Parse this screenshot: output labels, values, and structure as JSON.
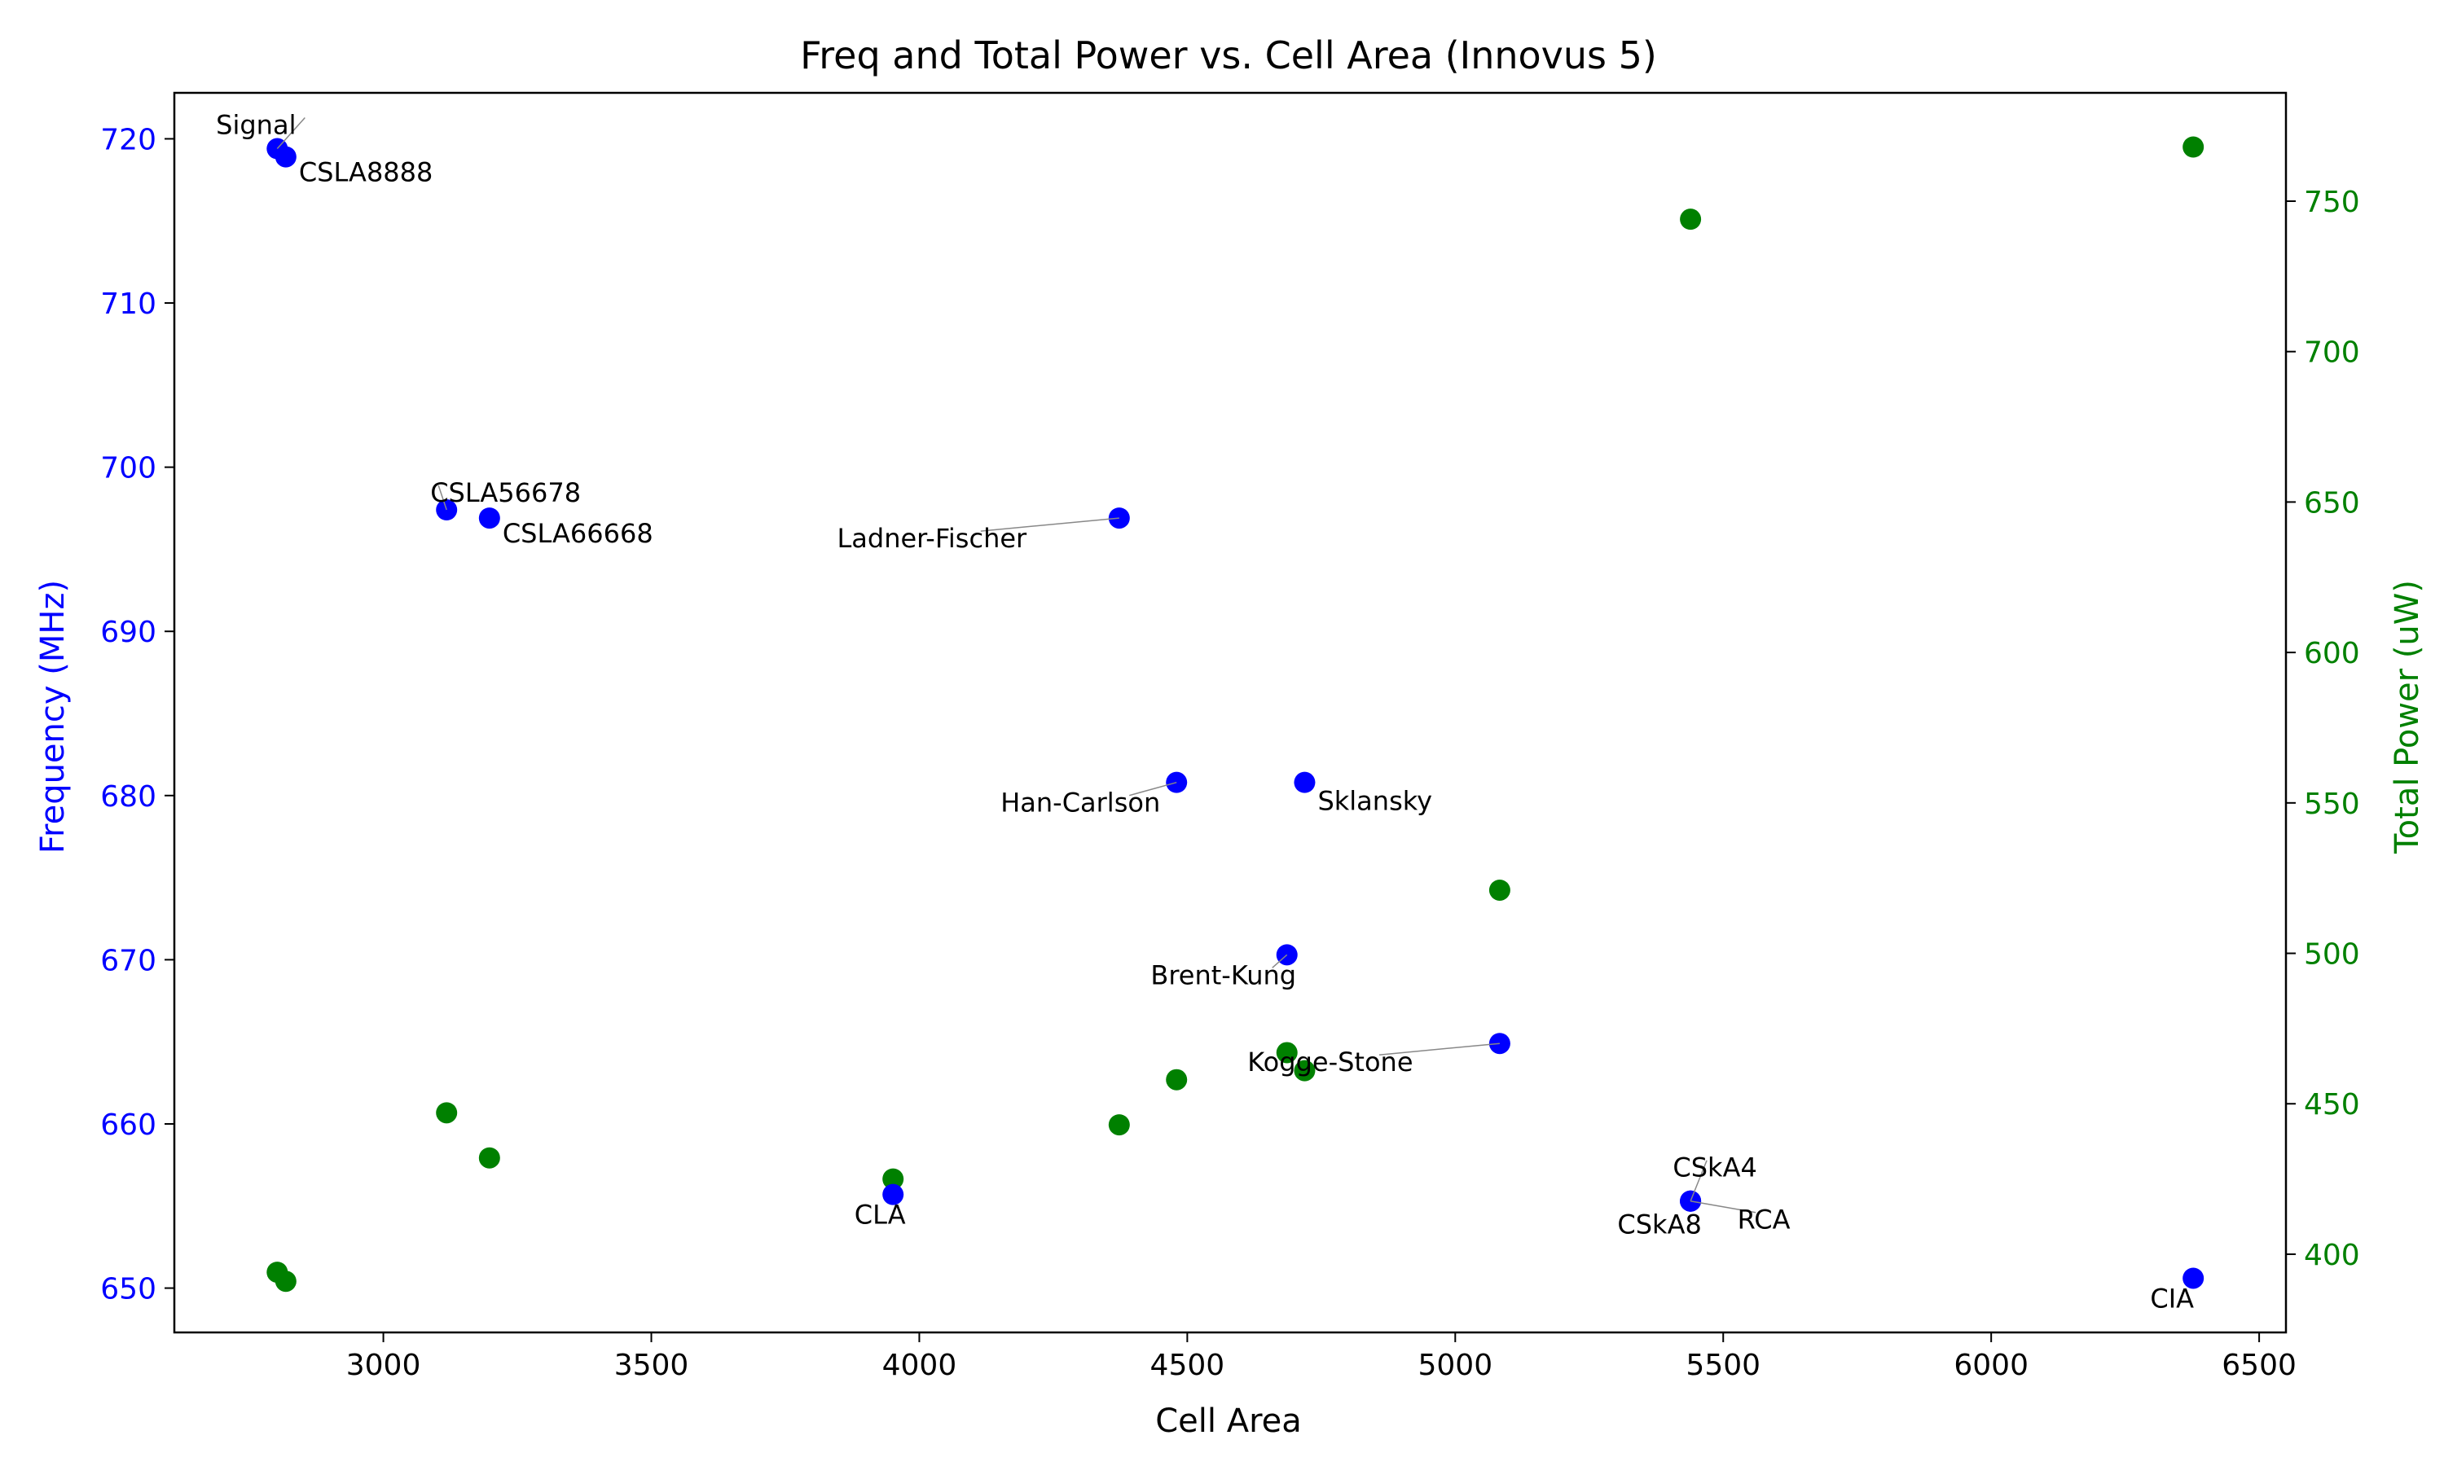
{
  "chart_data": {
    "type": "scatter",
    "title": "Freq and Total Power vs. Cell Area (Innovus 5)",
    "xlabel": "Cell Area",
    "ylabel_left": "Frequency (MHz)",
    "ylabel_right": "Total Power (uW)",
    "xlim": [
      2610,
      6550
    ],
    "ylim_left": [
      647.3,
      722.8
    ],
    "ylim_right": [
      374,
      786
    ],
    "x_ticks": [
      3000,
      3500,
      4000,
      4500,
      5000,
      5500,
      6000,
      6500
    ],
    "y_left_ticks": [
      650,
      660,
      670,
      680,
      690,
      700,
      710,
      720
    ],
    "y_right_ticks": [
      400,
      450,
      500,
      550,
      600,
      650,
      700,
      750
    ],
    "grid": false,
    "legend": "none",
    "colors": {
      "frequency": "#0000ff",
      "power": "#008000",
      "text": "#000000"
    },
    "series": [
      {
        "axis": "left",
        "color": "#0000ff",
        "points": [
          {
            "label": "Signal",
            "x": 2802,
            "y": 719.4
          },
          {
            "label": "CSLA8888",
            "x": 2818,
            "y": 718.9
          },
          {
            "label": "CSLA56678",
            "x": 3118,
            "y": 697.4
          },
          {
            "label": "CSLA66668",
            "x": 3198,
            "y": 696.9
          },
          {
            "label": "CLA",
            "x": 3951,
            "y": 655.7
          },
          {
            "label": "Ladner-Fischer",
            "x": 4373,
            "y": 696.9
          },
          {
            "label": "Han-Carlson",
            "x": 4480,
            "y": 680.8
          },
          {
            "label": "Sklansky",
            "x": 4719,
            "y": 680.8
          },
          {
            "label": "Brent-Kung",
            "x": 4686,
            "y": 670.3
          },
          {
            "label": "Kogge-Stone",
            "x": 5083,
            "y": 664.9
          },
          {
            "label": "CSkA4",
            "x": 5439,
            "y": 655.3
          },
          {
            "label": "CSkA8",
            "x": 5439,
            "y": 655.3
          },
          {
            "label": "RCA",
            "x": 5439,
            "y": 655.3
          },
          {
            "label": "CIA",
            "x": 6377,
            "y": 650.6
          }
        ]
      },
      {
        "axis": "right",
        "color": "#008000",
        "points": [
          {
            "x": 2802,
            "y": 394
          },
          {
            "x": 2818,
            "y": 391
          },
          {
            "x": 3118,
            "y": 447
          },
          {
            "x": 3198,
            "y": 432
          },
          {
            "x": 3951,
            "y": 425
          },
          {
            "x": 4373,
            "y": 443
          },
          {
            "x": 4480,
            "y": 458
          },
          {
            "x": 4686,
            "y": 467
          },
          {
            "x": 4719,
            "y": 461
          },
          {
            "x": 5083,
            "y": 521
          },
          {
            "x": 5439,
            "y": 744
          },
          {
            "x": 6377,
            "y": 768
          }
        ]
      }
    ]
  }
}
